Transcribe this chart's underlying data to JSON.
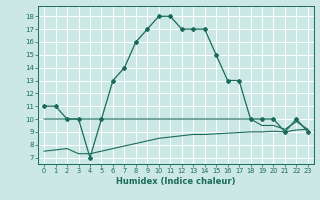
{
  "xlabel": "Humidex (Indice chaleur)",
  "bg_color": "#cce8e4",
  "grid_color": "#ffffff",
  "line_color": "#1a6b5a",
  "x_ticks": [
    0,
    1,
    2,
    3,
    4,
    5,
    6,
    7,
    8,
    9,
    10,
    11,
    12,
    13,
    14,
    15,
    16,
    17,
    18,
    19,
    20,
    21,
    22,
    23
  ],
  "y_ticks": [
    7,
    8,
    9,
    10,
    11,
    12,
    13,
    14,
    15,
    16,
    17,
    18
  ],
  "xlim": [
    -0.5,
    23.5
  ],
  "ylim": [
    6.5,
    18.8
  ],
  "curve1_x": [
    0,
    1,
    2,
    3,
    4,
    5,
    6,
    7,
    8,
    9,
    10,
    11,
    12,
    13,
    14,
    15,
    16,
    17,
    18,
    19,
    20,
    21,
    22,
    23
  ],
  "curve1_y": [
    11,
    11,
    10,
    10,
    7,
    10,
    13,
    14,
    16,
    17,
    18,
    18,
    17,
    17,
    17,
    15,
    13,
    13,
    10,
    10,
    10,
    9,
    10,
    9
  ],
  "curve2_x": [
    0,
    1,
    2,
    3,
    4,
    5,
    6,
    7,
    8,
    9,
    10,
    11,
    12,
    13,
    14,
    15,
    16,
    17,
    18,
    19,
    20,
    21,
    22,
    23
  ],
  "curve2_y": [
    10,
    10,
    10,
    10,
    10,
    10,
    10,
    10,
    10,
    10,
    10,
    10,
    10,
    10,
    10,
    10,
    10,
    10,
    10,
    9.5,
    9.5,
    9.2,
    9.8,
    9.2
  ],
  "curve3_x": [
    0,
    1,
    2,
    3,
    4,
    5,
    6,
    7,
    8,
    9,
    10,
    11,
    12,
    13,
    14,
    15,
    16,
    17,
    18,
    19,
    20,
    21,
    22,
    23
  ],
  "curve3_y": [
    7.5,
    7.6,
    7.7,
    7.3,
    7.3,
    7.5,
    7.7,
    7.9,
    8.1,
    8.3,
    8.5,
    8.6,
    8.7,
    8.8,
    8.8,
    8.85,
    8.9,
    8.95,
    9.0,
    9.0,
    9.05,
    9.0,
    9.15,
    9.2
  ]
}
